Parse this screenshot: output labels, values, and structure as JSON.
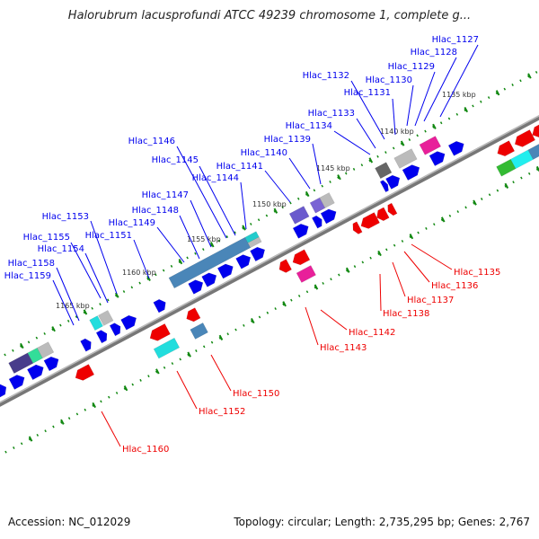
{
  "title": "Halorubrum lacusprofundi ATCC 49239 chromosome 1, complete g...",
  "footer": {
    "accession": "Accession: NC_012029",
    "topology": "Topology: circular; Length: 2,735,295 bp; Genes: 2,767"
  },
  "colors": {
    "forward": "#0000ee",
    "reverse": "#ee0000",
    "backbone": "#888888",
    "ticks": "#118811"
  },
  "kbp_labels": [
    "1135 kbp",
    "1140 kbp",
    "1145 kbp",
    "1150 kbp",
    "1155 kbp",
    "1160 kbp",
    "1165 kbp"
  ],
  "forward_labels": [
    "Hlac_1127",
    "Hlac_1128",
    "Hlac_1129",
    "Hlac_1130",
    "Hlac_1131",
    "Hlac_1132",
    "Hlac_1133",
    "Hlac_1134",
    "Hlac_1139",
    "Hlac_1140",
    "Hlac_1141",
    "Hlac_1144",
    "Hlac_1145",
    "Hlac_1146",
    "Hlac_1147",
    "Hlac_1148",
    "Hlac_1149",
    "Hlac_1151",
    "Hlac_1153",
    "Hlac_1155",
    "Hlac_1154",
    "Hlac_1158",
    "Hlac_1159"
  ],
  "reverse_labels": [
    "Hlac_1135",
    "Hlac_1136",
    "Hlac_1137",
    "Hlac_1138",
    "Hlac_1142",
    "Hlac_1143",
    "Hlac_1150",
    "Hlac_1152",
    "Hlac_1160"
  ]
}
